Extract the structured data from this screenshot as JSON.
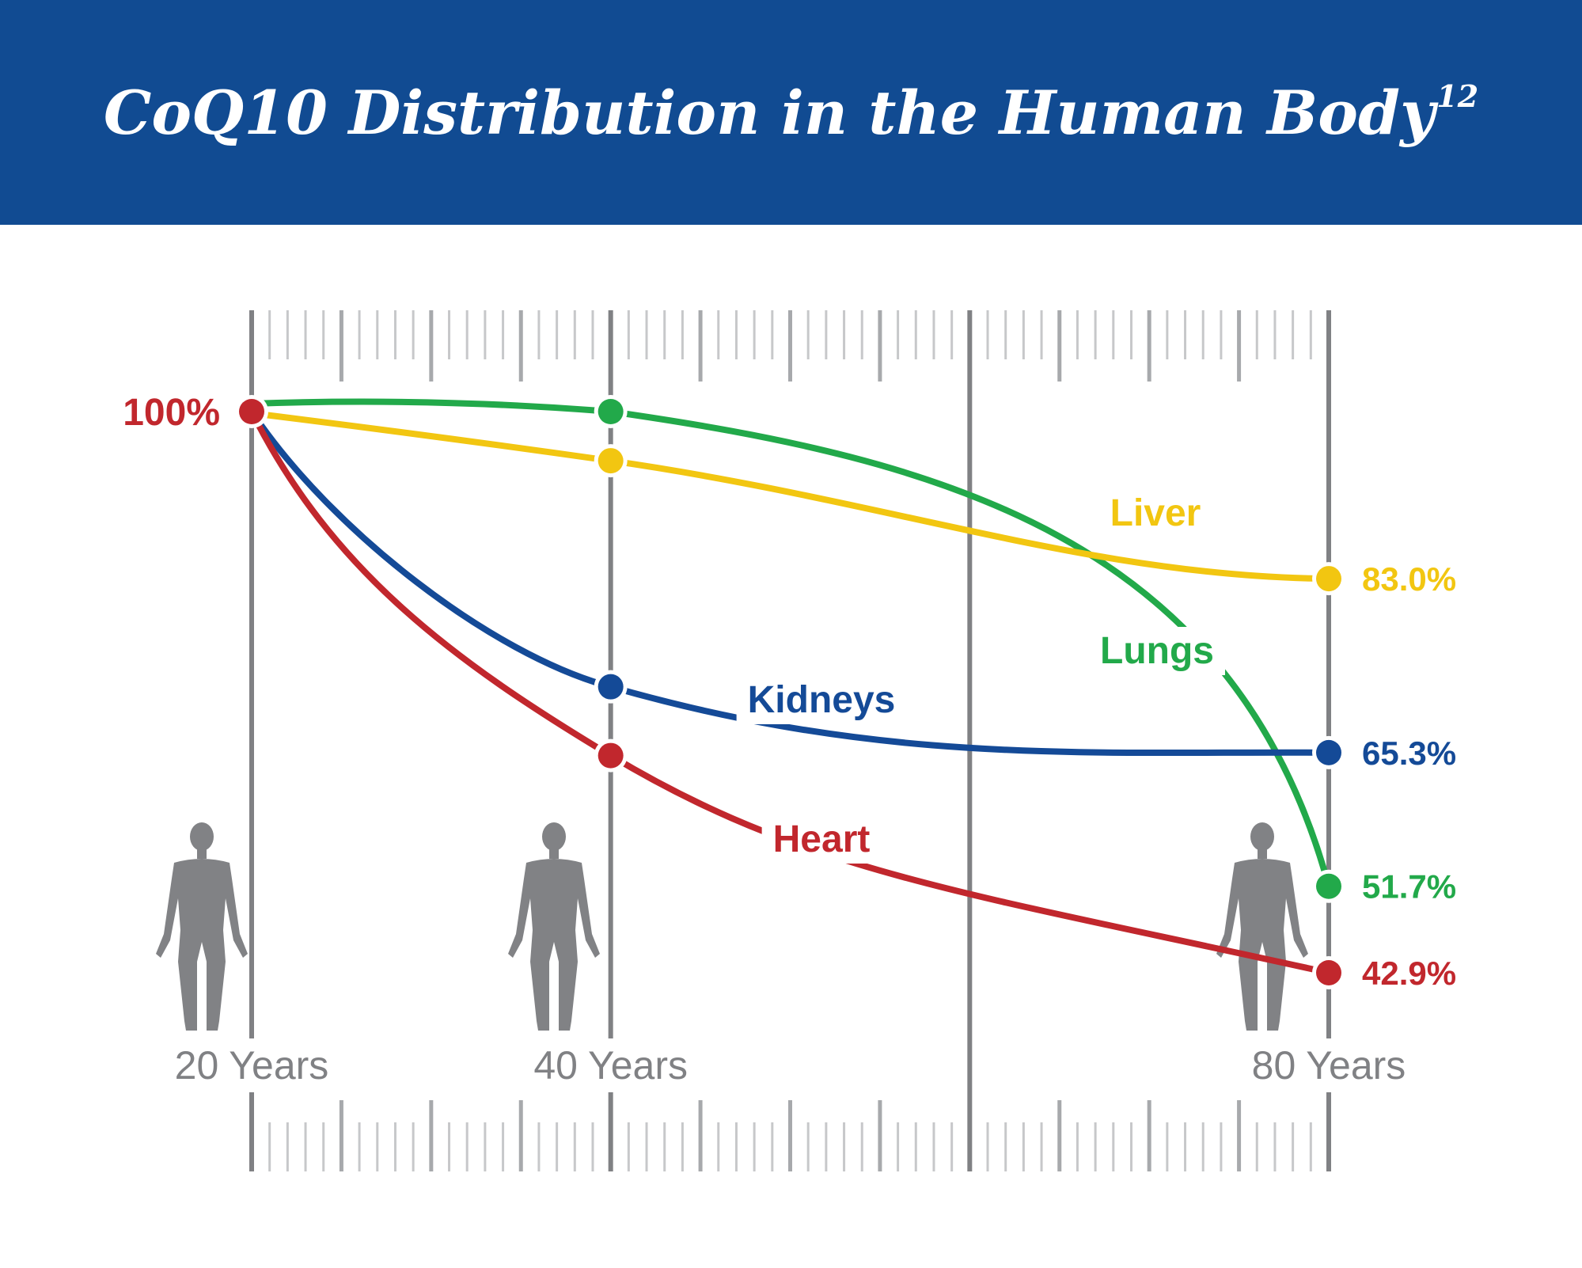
{
  "header": {
    "title": "CoQ10 Distribution in the Human Body",
    "superscript": "12",
    "background": "#114b92"
  },
  "chart_data": {
    "type": "line",
    "title": "CoQ10 Distribution in the Human Body",
    "x": [
      20,
      40,
      80
    ],
    "x_tick_labels": [
      "20 Years",
      "40 Years",
      "80 Years"
    ],
    "xlim": [
      20,
      80
    ],
    "ylim": [
      40,
      100
    ],
    "start_label": "100%",
    "start_color": "#c1272d",
    "grid": true,
    "series": [
      {
        "name": "Lungs",
        "color": "#22a94a",
        "values": [
          100,
          100,
          51.7
        ],
        "end_label": "51.7%"
      },
      {
        "name": "Liver",
        "color": "#f2c611",
        "values": [
          100,
          95,
          83.0
        ],
        "end_label": "83.0%"
      },
      {
        "name": "Kidneys",
        "color": "#144a97",
        "values": [
          100,
          72,
          65.3
        ],
        "end_label": "65.3%"
      },
      {
        "name": "Heart",
        "color": "#c1272d",
        "values": [
          100,
          65,
          42.9
        ],
        "end_label": "42.9%"
      }
    ],
    "figures": [
      "person-icon",
      "person-icon",
      "person-icon"
    ],
    "axis_color": "#808184"
  }
}
